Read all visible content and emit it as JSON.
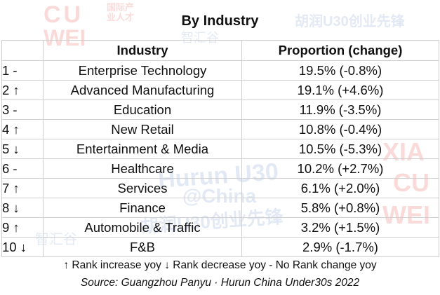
{
  "title": "By Industry",
  "headers": {
    "rank": "",
    "industry": "Industry",
    "proportion": "Proportion (change)"
  },
  "rows": [
    {
      "rank": "1 -",
      "industry": "Enterprise Technology",
      "proportion": "19.5% (-0.8%)"
    },
    {
      "rank": "2 ↑",
      "industry": "Advanced Manufacturing",
      "proportion": "19.1% (+4.6%)"
    },
    {
      "rank": "3 -",
      "industry": "Education",
      "proportion": "11.9% (-3.5%)"
    },
    {
      "rank": "4 ↑",
      "industry": "New Retail",
      "proportion": "10.8% (-0.4%)"
    },
    {
      "rank": "5 ↓",
      "industry": "Entertainment & Media",
      "proportion": "10.5% (-5.3%)"
    },
    {
      "rank": "6 -",
      "industry": "Healthcare",
      "proportion": "10.2% (+2.7%)"
    },
    {
      "rank": "7 ↑",
      "industry": "Services",
      "proportion": "6.1% (+2.0%)"
    },
    {
      "rank": "8 ↓",
      "industry": "Finance",
      "proportion": "5.8% (+0.8%)"
    },
    {
      "rank": "9 ↑",
      "industry": "Automobile & Traffic",
      "proportion": "3.2% (+1.5%)"
    },
    {
      "rank": "10 ↓",
      "industry": "F&B",
      "proportion": "2.9% (-1.7%)"
    }
  ],
  "legend": "↑ Rank increase yoy  ↓ Rank decrease yoy  - No Rank change yoy",
  "source": "Source: Guangzhou Panyu · Hurun China Under30s 2022",
  "watermarks": [
    "CU",
    "WEI",
    "国际产业人才",
    "智汇谷",
    "胡润U30创业先锋",
    "Hurun U30",
    "@China",
    "胡润U30创业先锋",
    "智汇谷",
    "XIA",
    "CU",
    "WEI"
  ],
  "colors": {
    "watermark_red": "#e53935",
    "watermark_blue": "#6a8cc7",
    "grid": "#cfcfcf"
  }
}
